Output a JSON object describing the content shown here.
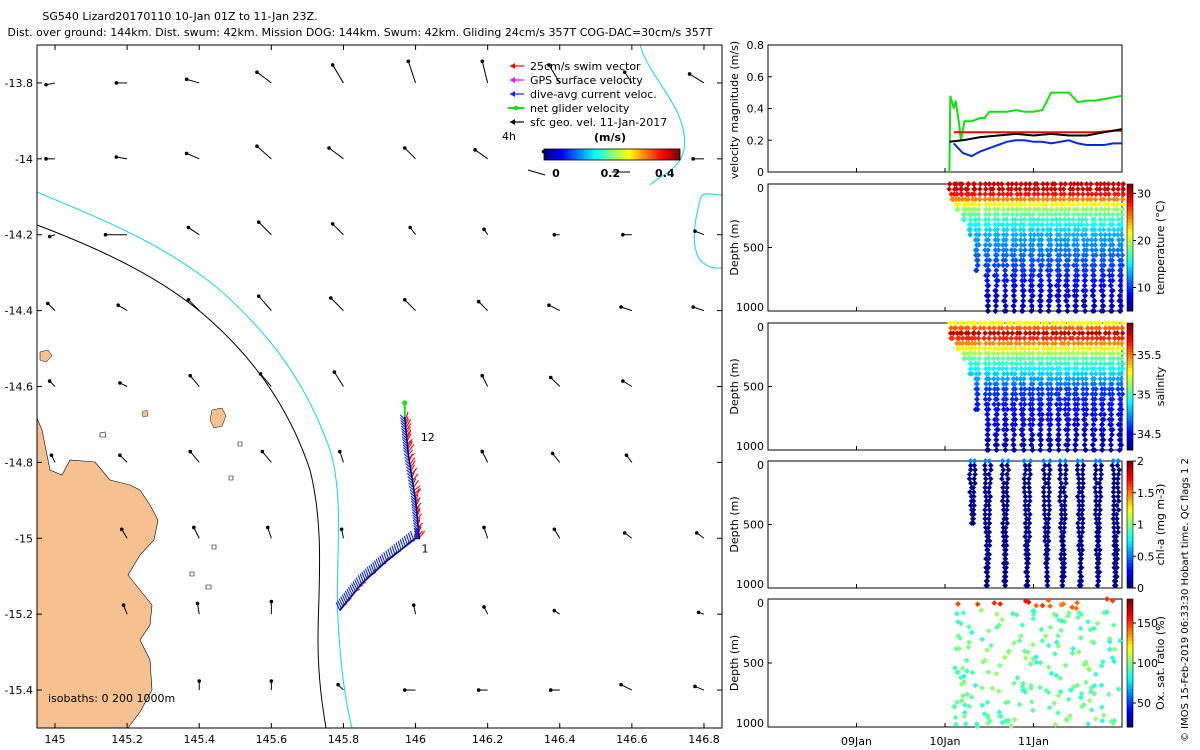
{
  "header": {
    "title_line1": "SG540 Lizard20170110 10-Jan 01Z to 11-Jan 23Z.",
    "title_line2": "Dist. over ground: 144km. Dist. swum: 42km. Mission DOG: 144km. Swum: 42km. Gliding 24cm/s 357T COG-DAC=30cm/s 357T"
  },
  "side_credit": "© IMOS 15-Feb-2019 06:33:30 Hobart time. QC flags 1  2",
  "colors": {
    "land": "#f7c08f",
    "coast_cyan": "#1fd9e6",
    "isobath_black": "#000000",
    "swim_red": "#ff0000",
    "gps_magenta": "#ff00ff",
    "dac_blue": "#0a28e0",
    "net_green": "#11e011",
    "sfc_black": "#000000"
  },
  "chart_data": [
    {
      "type": "map",
      "name": "glider-track-map",
      "xlim": [
        144.95,
        146.85
      ],
      "ylim": [
        -15.5,
        -13.7
      ],
      "x_ticks": [
        145,
        145.2,
        145.4,
        145.6,
        145.8,
        146,
        146.2,
        146.4,
        146.6,
        146.8
      ],
      "x_tick_labels": [
        "145",
        "145.2",
        "145.4",
        "145.6",
        "145.8",
        "146",
        "146.2",
        "146.4",
        "146.6",
        "146.8"
      ],
      "y_ticks": [
        -13.8,
        -14,
        -14.2,
        -14.4,
        -14.6,
        -14.8,
        -15,
        -15.2,
        -15.4
      ],
      "y_tick_labels": [
        "-13.8",
        "-14",
        "-14.2",
        "-14.4",
        "-14.6",
        "-14.8",
        "-15",
        "-15.2",
        "-15.4"
      ],
      "legend": [
        {
          "label": "25cm/s swim vector",
          "color": "#ff0000",
          "marker": "arrow"
        },
        {
          "label": "GPS surface velocity",
          "color": "#ff00ff",
          "marker": "arrow"
        },
        {
          "label": "dive-avg current veloc.",
          "color": "#0a28e0",
          "marker": "arrow"
        },
        {
          "label": "net glider velocity",
          "color": "#11e011",
          "marker": "dot-line"
        },
        {
          "label": "sfc geo. vel. 11-Jan-2017",
          "color": "#000000",
          "marker": "arrow"
        }
      ],
      "colorbar": {
        "label": "(m/s)",
        "ticks": [
          "0",
          "0.2",
          "0.4"
        ],
        "range": [
          0,
          0.5
        ]
      },
      "time_step_label": "4h",
      "track_labels": [
        "12",
        "1"
      ],
      "isobath_label": "isobaths: 0   200  1000m",
      "track": [
        [
          145.79,
          -15.19
        ],
        [
          145.85,
          -15.12
        ],
        [
          145.92,
          -15.06
        ],
        [
          146.0,
          -15.0
        ],
        [
          146.01,
          -15.0
        ],
        [
          146.0,
          -14.9
        ],
        [
          145.98,
          -14.78
        ],
        [
          145.97,
          -14.68
        ]
      ],
      "vector_field": {
        "lons": [
          145.0,
          145.2,
          145.4,
          145.6,
          145.8,
          146.0,
          146.2,
          146.4,
          146.6,
          146.8
        ],
        "lats": [
          -13.8,
          -14.0,
          -14.2,
          -14.4,
          -14.6,
          -14.8,
          -15.0,
          -15.2,
          -15.4
        ],
        "u_v": [
          [
            [
              0.05,
              -0.01
            ],
            [
              0.06,
              0.0
            ],
            [
              0.07,
              0.02
            ],
            [
              0.08,
              0.06
            ],
            [
              0.06,
              0.1
            ],
            [
              0.04,
              0.12
            ],
            [
              0.03,
              0.12
            ],
            [
              0.06,
              0.1
            ],
            [
              0.04,
              0.06
            ],
            [
              0.08,
              0.05
            ]
          ],
          [
            [
              0.05,
              0.0
            ],
            [
              0.06,
              0.01
            ],
            [
              0.07,
              0.03
            ],
            [
              0.08,
              0.07
            ],
            [
              0.08,
              0.06
            ],
            [
              0.06,
              0.06
            ],
            [
              0.07,
              0.05
            ],
            [
              0.09,
              0.04
            ],
            [
              0.12,
              0.02
            ],
            [
              0.06,
              0.0
            ]
          ],
          [
            [
              0.03,
              -0.01
            ],
            [
              0.12,
              0.0
            ],
            [
              0.06,
              0.04
            ],
            [
              0.07,
              0.07
            ],
            [
              0.06,
              0.06
            ],
            [
              0.03,
              0.04
            ],
            [
              0.02,
              0.03
            ],
            [
              0.03,
              0.0
            ],
            [
              0.05,
              0.0
            ],
            [
              0.05,
              0.02
            ]
          ],
          [
            [
              0.04,
              0.04
            ],
            [
              0.05,
              0.03
            ],
            [
              0.06,
              0.06
            ],
            [
              0.07,
              0.08
            ],
            [
              0.07,
              0.07
            ],
            [
              0.06,
              0.06
            ],
            [
              0.05,
              0.05
            ],
            [
              0.06,
              0.03
            ],
            [
              0.06,
              0.02
            ],
            [
              0.06,
              0.02
            ]
          ],
          [
            [
              0.03,
              0.03
            ],
            [
              0.04,
              0.02
            ],
            [
              0.05,
              0.06
            ],
            [
              0.06,
              0.07
            ],
            [
              0.05,
              0.08
            ],
            [
              0.0,
              0.0
            ],
            [
              0.03,
              0.06
            ],
            [
              0.05,
              0.05
            ],
            [
              0.05,
              0.03
            ],
            [
              0.0,
              0.0
            ]
          ],
          [
            [
              0.02,
              0.04
            ],
            [
              0.04,
              0.04
            ],
            [
              0.05,
              0.06
            ],
            [
              0.05,
              0.06
            ],
            [
              0.02,
              0.06
            ],
            [
              0.0,
              0.0
            ],
            [
              0.03,
              0.06
            ],
            [
              0.04,
              0.05
            ],
            [
              0.03,
              0.04
            ],
            [
              0.0,
              0.0
            ]
          ],
          [
            [
              0.0,
              0.0
            ],
            [
              0.03,
              0.05
            ],
            [
              0.03,
              0.06
            ],
            [
              0.02,
              0.06
            ],
            [
              0.01,
              0.05
            ],
            [
              0.0,
              0.0
            ],
            [
              0.02,
              0.06
            ],
            [
              0.03,
              0.05
            ],
            [
              0.04,
              0.03
            ],
            [
              0.04,
              0.03
            ]
          ],
          [
            [
              0.0,
              0.0
            ],
            [
              0.02,
              0.05
            ],
            [
              0.01,
              0.06
            ],
            [
              0.0,
              0.07
            ],
            [
              0.0,
              0.0
            ],
            [
              0.01,
              0.05
            ],
            [
              0.02,
              0.04
            ],
            [
              0.03,
              0.02
            ],
            [
              0.0,
              0.0
            ],
            [
              0.03,
              0.01
            ]
          ],
          [
            [
              0.0,
              0.0
            ],
            [
              0.0,
              0.0
            ],
            [
              0.0,
              0.05
            ],
            [
              0.0,
              0.05
            ],
            [
              0.03,
              0.03
            ],
            [
              0.06,
              0.0
            ],
            [
              0.05,
              0.0
            ],
            [
              0.05,
              0.0
            ],
            [
              0.06,
              0.03
            ],
            [
              0.05,
              0.02
            ]
          ]
        ]
      }
    },
    {
      "type": "line",
      "name": "velocity-magnitude",
      "ylabel": "velocity magnitude (m/s)",
      "ylim": [
        0,
        0.8
      ],
      "y_ticks": [
        0,
        0.2,
        0.4,
        0.6,
        0.8
      ],
      "y_tick_labels": [
        "0",
        "0.2",
        "0.4",
        "0.6",
        "0.8"
      ],
      "xlim_days": [
        8.0,
        12.0
      ],
      "series": [
        {
          "name": "net glider velocity",
          "color": "#11e011",
          "x": [
            10.05,
            10.06,
            10.1,
            10.12,
            10.16,
            10.18,
            10.22,
            10.3,
            10.4,
            10.45,
            10.5,
            10.6,
            10.7,
            10.8,
            10.9,
            11.0,
            11.1,
            11.2,
            11.3,
            11.4,
            11.5,
            11.6,
            11.7,
            11.8,
            11.9,
            12.0
          ],
          "y": [
            0.0,
            0.48,
            0.4,
            0.45,
            0.3,
            0.2,
            0.32,
            0.32,
            0.34,
            0.34,
            0.38,
            0.38,
            0.38,
            0.39,
            0.38,
            0.38,
            0.39,
            0.5,
            0.5,
            0.5,
            0.44,
            0.45,
            0.45,
            0.46,
            0.47,
            0.48
          ]
        },
        {
          "name": "swim vector",
          "color": "#ff0000",
          "x": [
            10.1,
            10.3,
            10.5,
            10.7,
            10.9,
            11.1,
            11.3,
            11.5,
            11.7,
            11.9,
            12.0
          ],
          "y": [
            0.25,
            0.25,
            0.25,
            0.25,
            0.25,
            0.25,
            0.25,
            0.25,
            0.25,
            0.26,
            0.26
          ]
        },
        {
          "name": "dive-avg current",
          "color": "#0a28e0",
          "x": [
            10.1,
            10.2,
            10.3,
            10.4,
            10.5,
            10.6,
            10.7,
            10.8,
            10.9,
            11.0,
            11.1,
            11.2,
            11.3,
            11.4,
            11.5,
            11.6,
            11.7,
            11.8,
            11.9,
            12.0
          ],
          "y": [
            0.18,
            0.12,
            0.1,
            0.13,
            0.15,
            0.17,
            0.19,
            0.2,
            0.2,
            0.19,
            0.19,
            0.18,
            0.19,
            0.2,
            0.18,
            0.17,
            0.17,
            0.17,
            0.18,
            0.18
          ]
        },
        {
          "name": "net velocity",
          "color": "#000000",
          "x": [
            10.05,
            10.2,
            10.4,
            10.6,
            10.8,
            11.0,
            11.2,
            11.4,
            11.6,
            11.8,
            12.0
          ],
          "y": [
            0.19,
            0.2,
            0.22,
            0.23,
            0.24,
            0.23,
            0.24,
            0.23,
            0.23,
            0.25,
            0.27
          ]
        }
      ]
    },
    {
      "type": "scatter",
      "name": "temperature-profile",
      "ylabel": "Depth (m)",
      "colorbar_label": "temperature (°C)",
      "y_ticks": [
        0,
        500,
        1000
      ],
      "y_tick_labels": [
        "0",
        "500",
        "1000"
      ],
      "colorbar_ticks": [
        "10",
        "20",
        "30"
      ],
      "crange": [
        5,
        32
      ],
      "xlim_days": [
        8.0,
        12.0
      ],
      "dive_start_days": [
        10.05,
        10.12,
        10.19,
        10.26,
        10.33,
        10.45,
        10.55,
        10.65,
        10.75,
        10.85,
        10.95,
        11.05,
        11.15,
        11.25,
        11.35,
        11.45,
        11.55,
        11.65,
        11.75,
        11.85,
        11.95
      ],
      "dive_max_depth_m": [
        150,
        220,
        300,
        420,
        700,
        1000,
        1000,
        1000,
        1000,
        1000,
        1000,
        1000,
        1000,
        1000,
        1000,
        1000,
        1000,
        1000,
        1000,
        1000,
        1000
      ]
    },
    {
      "type": "scatter",
      "name": "salinity-profile",
      "ylabel": "Depth (m)",
      "colorbar_label": "salinity",
      "y_ticks": [
        0,
        500,
        1000
      ],
      "y_tick_labels": [
        "0",
        "500",
        "1000"
      ],
      "colorbar_ticks": [
        "34.5",
        "35",
        "35.5"
      ],
      "crange": [
        34.3,
        35.9
      ],
      "xlim_days": [
        8.0,
        12.0
      ]
    },
    {
      "type": "scatter",
      "name": "chla-profile",
      "ylabel": "Depth (m)",
      "colorbar_label": "chl-a (mg m-3)",
      "y_ticks": [
        0,
        500,
        1000
      ],
      "y_tick_labels": [
        "0",
        "500",
        "1000"
      ],
      "colorbar_ticks": [
        "0",
        "0.5",
        "1",
        "1.5",
        "2"
      ],
      "crange": [
        0,
        2
      ],
      "xlim_days": [
        8.0,
        12.0
      ],
      "dive_start_days": [
        10.28,
        10.45,
        10.65,
        10.9,
        11.12,
        11.3,
        11.5,
        11.7,
        11.9
      ]
    },
    {
      "type": "scatter",
      "name": "oxygen-profile",
      "ylabel": "Depth (m)",
      "colorbar_label": "Ox. sat. ratio (%)",
      "y_ticks": [
        0,
        500,
        1000
      ],
      "y_tick_labels": [
        "0",
        "500",
        "1000"
      ],
      "colorbar_ticks": [
        "50",
        "100",
        "150"
      ],
      "crange": [
        20,
        180
      ],
      "xlim_days": [
        8.0,
        12.0
      ],
      "x_ticks_days": [
        9,
        10,
        11
      ],
      "x_tick_labels": [
        "09Jan",
        "10Jan",
        "11Jan"
      ]
    }
  ]
}
